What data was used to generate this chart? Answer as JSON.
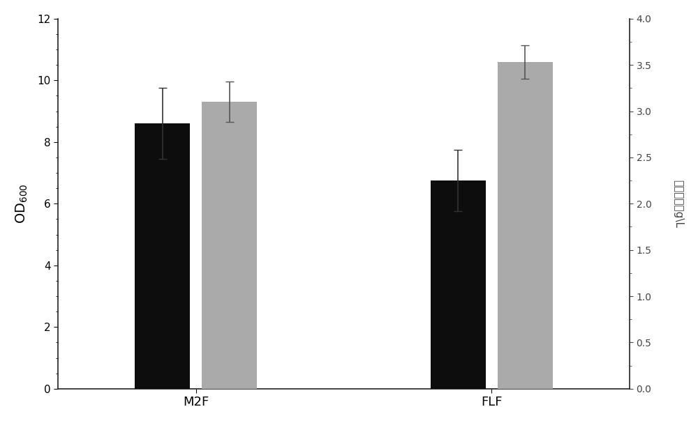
{
  "categories": [
    "M2F",
    "FLF"
  ],
  "bar_black_values": [
    8.6,
    6.75
  ],
  "bar_gray_values": [
    3.1,
    3.53
  ],
  "bar_black_errors": [
    1.15,
    1.0
  ],
  "bar_gray_errors": [
    0.22,
    0.18
  ],
  "bar_black_color": "#0d0d0d",
  "bar_gray_color": "#aaaaaa",
  "left_ylabel": "OD$_{600}$",
  "right_ylabel": "蛋氨酸产量g\\L",
  "left_ylim": [
    0,
    12
  ],
  "right_ylim": [
    0,
    4
  ],
  "left_yticks": [
    0,
    2,
    4,
    6,
    8,
    10,
    12
  ],
  "right_yticks": [
    0,
    0.5,
    1,
    1.5,
    2,
    2.5,
    3,
    3.5,
    4
  ],
  "bar_width": 0.28,
  "x_positions": [
    1.0,
    2.5
  ],
  "figsize": [
    10.0,
    6.07
  ],
  "dpi": 100,
  "background_color": "#ffffff",
  "capsize": 4,
  "errorbar_linewidth": 1.2,
  "errorbar_color_black": "#333333",
  "errorbar_color_gray": "#555555"
}
